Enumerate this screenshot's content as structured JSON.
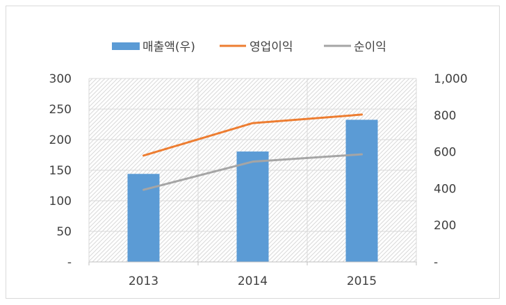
{
  "chart_data": {
    "type": "bar",
    "categories": [
      "2013",
      "2014",
      "2015"
    ],
    "series": [
      {
        "name": "매출액(우)",
        "type": "bar",
        "axis": "right",
        "values": [
          480,
          602,
          775
        ],
        "color": "#5b9bd5"
      },
      {
        "name": "영업이익",
        "type": "line",
        "axis": "left",
        "values": [
          174,
          227,
          241
        ],
        "color": "#ed7d31"
      },
      {
        "name": "순이익",
        "type": "line",
        "axis": "left",
        "values": [
          118,
          164,
          176
        ],
        "color": "#a5a5a5"
      }
    ],
    "left_axis": {
      "ylim": [
        0,
        300
      ],
      "ticks": [
        "-",
        "50",
        "100",
        "150",
        "200",
        "250",
        "300"
      ]
    },
    "right_axis": {
      "ylim": [
        0,
        1000
      ],
      "ticks": [
        "-",
        "200",
        "400",
        "600",
        "800",
        "1,000"
      ]
    },
    "grid": true,
    "plot_background": "diagonal-hatch",
    "legend_position": "top"
  }
}
